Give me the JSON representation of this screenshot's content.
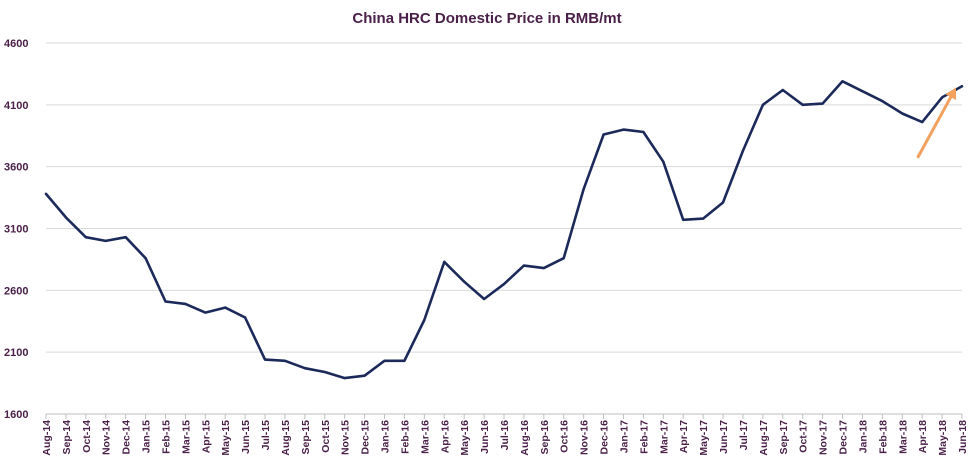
{
  "chart_data": {
    "type": "line",
    "title": "China HRC Domestic Price in RMB/mt",
    "xlabel": "",
    "ylabel": "",
    "ylim": [
      1600,
      4600
    ],
    "yticks": [
      1600,
      2100,
      2600,
      3100,
      3600,
      4100,
      4600
    ],
    "grid": true,
    "legend": "none",
    "colors": {
      "line": "#1b2a5a",
      "arrow": "#f2a15e",
      "text": "#4a2048",
      "grid": "#d9d9d9"
    },
    "categories": [
      "Aug-14",
      "Sep-14",
      "Oct-14",
      "Nov-14",
      "Dec-14",
      "Jan-15",
      "Feb-15",
      "Mar-15",
      "Apr-15",
      "May-15",
      "Jun-15",
      "Jul-15",
      "Aug-15",
      "Sep-15",
      "Oct-15",
      "Nov-15",
      "Dec-15",
      "Jan-16",
      "Feb-16",
      "Mar-16",
      "Apr-16",
      "May-16",
      "Jun-16",
      "Jul-16",
      "Aug-16",
      "Sep-16",
      "Oct-16",
      "Nov-16",
      "Dec-16",
      "Jan-17",
      "Feb-17",
      "Mar-17",
      "Apr-17",
      "May-17",
      "Jun-17",
      "Jul-17",
      "Aug-17",
      "Sep-17",
      "Oct-17",
      "Nov-17",
      "Dec-17",
      "Jan-18",
      "Feb-18",
      "Mar-18",
      "Apr-18",
      "May-18",
      "Jun-18"
    ],
    "series": [
      {
        "values": [
          3380,
          3190,
          3030,
          3000,
          3030,
          2860,
          2510,
          2490,
          2420,
          2460,
          2380,
          2040,
          2030,
          1970,
          1940,
          1890,
          1910,
          2030,
          2030,
          2360,
          2830,
          2670,
          2530,
          2650,
          2800,
          2780,
          2860,
          3420,
          3860,
          3900,
          3880,
          3640,
          3170,
          3180,
          3310,
          3730,
          4100,
          4220,
          4100,
          4110,
          4290,
          4210,
          4130,
          4030,
          3960,
          4160,
          4250
        ]
      }
    ],
    "annotations": [
      {
        "type": "trend-arrow",
        "from_category": "Apr-18",
        "from_value": 3680,
        "to_category": "Jun-18",
        "to_value": 4240
      }
    ]
  }
}
